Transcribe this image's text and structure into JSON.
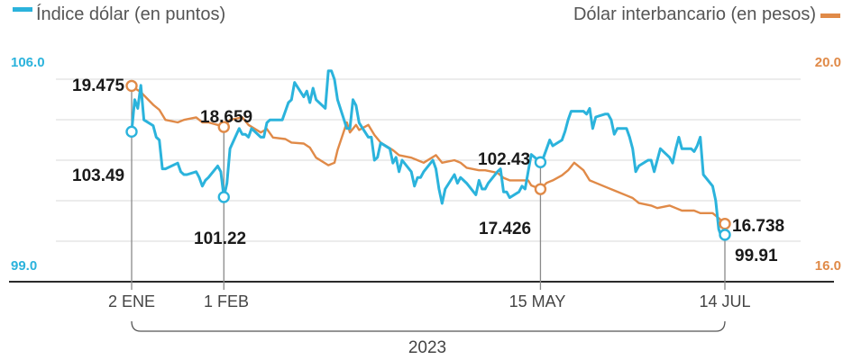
{
  "chart_data": {
    "type": "line",
    "legend": [
      {
        "label": "Índice dólar (en puntos)",
        "color": "#2bb3dc",
        "position": "top-left"
      },
      {
        "label": "Dólar interbancario (en pesos)",
        "color": "#e08a48",
        "position": "top-right"
      }
    ],
    "left_axis": {
      "min_label": "99.0",
      "max_label": "106.0",
      "range": [
        99.0,
        106.0
      ],
      "color": "#2bb3dc"
    },
    "right_axis": {
      "min_label": "16.0",
      "max_label": "20.0",
      "range": [
        16.0,
        20.0
      ],
      "color": "#e08a48"
    },
    "x_ticks": [
      "2 ENE",
      "1 FEB",
      "15 MAY",
      "14 JUL"
    ],
    "year_label": "2023",
    "grid": true,
    "series": [
      {
        "name": "Índice dólar (en puntos)",
        "axis": "left",
        "color": "#2bb3dc",
        "points": [
          [
            "2023-01-02",
            103.49
          ],
          [
            "2023-01-03",
            104.6
          ],
          [
            "2023-01-04",
            104.3
          ],
          [
            "2023-01-05",
            105.1
          ],
          [
            "2023-01-06",
            103.9
          ],
          [
            "2023-01-09",
            103.7
          ],
          [
            "2023-01-10",
            103.3
          ],
          [
            "2023-01-11",
            103.2
          ],
          [
            "2023-01-12",
            102.2
          ],
          [
            "2023-01-13",
            102.2
          ],
          [
            "2023-01-17",
            102.4
          ],
          [
            "2023-01-18",
            102.1
          ],
          [
            "2023-01-19",
            102.0
          ],
          [
            "2023-01-20",
            102.0
          ],
          [
            "2023-01-23",
            102.1
          ],
          [
            "2023-01-24",
            101.9
          ],
          [
            "2023-01-25",
            101.6
          ],
          [
            "2023-01-26",
            101.8
          ],
          [
            "2023-01-27",
            101.9
          ],
          [
            "2023-01-30",
            102.3
          ],
          [
            "2023-01-31",
            102.1
          ],
          [
            "2023-02-01",
            101.22
          ],
          [
            "2023-02-02",
            101.7
          ],
          [
            "2023-02-03",
            102.9
          ],
          [
            "2023-02-06",
            103.6
          ],
          [
            "2023-02-07",
            103.4
          ],
          [
            "2023-02-08",
            103.4
          ],
          [
            "2023-02-09",
            103.3
          ],
          [
            "2023-02-10",
            103.6
          ],
          [
            "2023-02-13",
            103.3
          ],
          [
            "2023-02-14",
            103.3
          ],
          [
            "2023-02-15",
            103.8
          ],
          [
            "2023-02-16",
            103.9
          ],
          [
            "2023-02-17",
            103.9
          ],
          [
            "2023-02-20",
            103.9
          ],
          [
            "2023-02-21",
            104.2
          ],
          [
            "2023-02-22",
            104.5
          ],
          [
            "2023-02-23",
            104.6
          ],
          [
            "2023-02-24",
            105.2
          ],
          [
            "2023-02-27",
            104.7
          ],
          [
            "2023-02-28",
            104.9
          ],
          [
            "2023-03-01",
            104.5
          ],
          [
            "2023-03-02",
            105.0
          ],
          [
            "2023-03-03",
            104.6
          ],
          [
            "2023-03-06",
            104.3
          ],
          [
            "2023-03-07",
            105.6
          ],
          [
            "2023-03-08",
            105.6
          ],
          [
            "2023-03-09",
            105.3
          ],
          [
            "2023-03-10",
            104.6
          ],
          [
            "2023-03-13",
            103.6
          ],
          [
            "2023-03-14",
            103.6
          ],
          [
            "2023-03-15",
            104.6
          ],
          [
            "2023-03-16",
            104.4
          ],
          [
            "2023-03-17",
            103.8
          ],
          [
            "2023-03-20",
            103.3
          ],
          [
            "2023-03-21",
            103.3
          ],
          [
            "2023-03-22",
            102.5
          ],
          [
            "2023-03-23",
            102.6
          ],
          [
            "2023-03-24",
            103.1
          ],
          [
            "2023-03-27",
            102.9
          ],
          [
            "2023-03-28",
            102.4
          ],
          [
            "2023-03-29",
            102.6
          ],
          [
            "2023-03-30",
            102.1
          ],
          [
            "2023-03-31",
            102.5
          ],
          [
            "2023-04-03",
            102.1
          ],
          [
            "2023-04-04",
            101.6
          ],
          [
            "2023-04-05",
            101.9
          ],
          [
            "2023-04-06",
            101.9
          ],
          [
            "2023-04-07",
            102.1
          ],
          [
            "2023-04-10",
            102.5
          ],
          [
            "2023-04-11",
            102.2
          ],
          [
            "2023-04-12",
            101.5
          ],
          [
            "2023-04-13",
            101.0
          ],
          [
            "2023-04-14",
            101.5
          ],
          [
            "2023-04-17",
            102.0
          ],
          [
            "2023-04-18",
            101.7
          ],
          [
            "2023-04-19",
            101.9
          ],
          [
            "2023-04-20",
            101.8
          ],
          [
            "2023-04-21",
            101.7
          ],
          [
            "2023-04-24",
            101.3
          ],
          [
            "2023-04-25",
            101.8
          ],
          [
            "2023-04-26",
            101.5
          ],
          [
            "2023-04-27",
            101.5
          ],
          [
            "2023-04-28",
            101.7
          ],
          [
            "2023-05-01",
            102.1
          ],
          [
            "2023-05-02",
            102.2
          ],
          [
            "2023-05-03",
            101.4
          ],
          [
            "2023-05-04",
            101.4
          ],
          [
            "2023-05-05",
            101.2
          ],
          [
            "2023-05-08",
            101.4
          ],
          [
            "2023-05-09",
            101.6
          ],
          [
            "2023-05-10",
            101.5
          ],
          [
            "2023-05-11",
            102.1
          ],
          [
            "2023-05-12",
            102.7
          ],
          [
            "2023-05-15",
            102.43
          ],
          [
            "2023-05-16",
            102.6
          ],
          [
            "2023-05-17",
            102.9
          ],
          [
            "2023-05-18",
            103.2
          ],
          [
            "2023-05-19",
            103.0
          ],
          [
            "2023-05-22",
            103.2
          ],
          [
            "2023-05-23",
            103.5
          ],
          [
            "2023-05-24",
            103.9
          ],
          [
            "2023-05-25",
            104.2
          ],
          [
            "2023-05-26",
            104.2
          ],
          [
            "2023-05-29",
            104.2
          ],
          [
            "2023-05-30",
            104.1
          ],
          [
            "2023-05-31",
            104.3
          ],
          [
            "2023-06-01",
            103.6
          ],
          [
            "2023-06-02",
            104.0
          ],
          [
            "2023-06-05",
            104.1
          ],
          [
            "2023-06-06",
            104.1
          ],
          [
            "2023-06-07",
            103.9
          ],
          [
            "2023-06-08",
            103.4
          ],
          [
            "2023-06-09",
            103.6
          ],
          [
            "2023-06-12",
            103.6
          ],
          [
            "2023-06-13",
            103.3
          ],
          [
            "2023-06-14",
            102.9
          ],
          [
            "2023-06-15",
            102.1
          ],
          [
            "2023-06-16",
            102.3
          ],
          [
            "2023-06-19",
            102.5
          ],
          [
            "2023-06-20",
            102.5
          ],
          [
            "2023-06-21",
            102.1
          ],
          [
            "2023-06-22",
            102.5
          ],
          [
            "2023-06-23",
            102.9
          ],
          [
            "2023-06-26",
            102.6
          ],
          [
            "2023-06-27",
            102.4
          ],
          [
            "2023-06-28",
            102.9
          ],
          [
            "2023-06-29",
            103.3
          ],
          [
            "2023-06-30",
            102.9
          ],
          [
            "2023-07-03",
            102.9
          ],
          [
            "2023-07-04",
            102.8
          ],
          [
            "2023-07-05",
            103.0
          ],
          [
            "2023-07-06",
            103.3
          ],
          [
            "2023-07-07",
            102.0
          ],
          [
            "2023-07-10",
            101.6
          ],
          [
            "2023-07-11",
            101.1
          ],
          [
            "2023-07-12",
            100.1
          ],
          [
            "2023-07-13",
            99.8
          ],
          [
            "2023-07-14",
            99.91
          ]
        ]
      },
      {
        "name": "Dólar interbancario (en pesos)",
        "axis": "right",
        "color": "#e08a48",
        "points": [
          [
            "2023-01-02",
            19.475
          ],
          [
            "2023-01-03",
            19.43
          ],
          [
            "2023-01-05",
            19.35
          ],
          [
            "2023-01-09",
            19.1
          ],
          [
            "2023-01-11",
            19.0
          ],
          [
            "2023-01-13",
            18.8
          ],
          [
            "2023-01-17",
            18.75
          ],
          [
            "2023-01-19",
            18.8
          ],
          [
            "2023-01-23",
            18.85
          ],
          [
            "2023-01-25",
            18.75
          ],
          [
            "2023-01-27",
            18.75
          ],
          [
            "2023-01-30",
            18.7
          ],
          [
            "2023-02-01",
            18.659
          ],
          [
            "2023-02-03",
            18.8
          ],
          [
            "2023-02-07",
            18.85
          ],
          [
            "2023-02-09",
            18.7
          ],
          [
            "2023-02-13",
            18.55
          ],
          [
            "2023-02-15",
            18.62
          ],
          [
            "2023-02-17",
            18.45
          ],
          [
            "2023-02-21",
            18.42
          ],
          [
            "2023-02-23",
            18.35
          ],
          [
            "2023-02-27",
            18.33
          ],
          [
            "2023-03-01",
            18.25
          ],
          [
            "2023-03-03",
            18.05
          ],
          [
            "2023-03-07",
            17.9
          ],
          [
            "2023-03-09",
            17.95
          ],
          [
            "2023-03-10",
            18.2
          ],
          [
            "2023-03-13",
            18.75
          ],
          [
            "2023-03-14",
            18.55
          ],
          [
            "2023-03-16",
            18.7
          ],
          [
            "2023-03-17",
            18.6
          ],
          [
            "2023-03-20",
            18.7
          ],
          [
            "2023-03-22",
            18.5
          ],
          [
            "2023-03-24",
            18.35
          ],
          [
            "2023-03-28",
            18.2
          ],
          [
            "2023-03-30",
            18.1
          ],
          [
            "2023-04-03",
            18.05
          ],
          [
            "2023-04-05",
            18.0
          ],
          [
            "2023-04-07",
            17.95
          ],
          [
            "2023-04-11",
            18.1
          ],
          [
            "2023-04-13",
            17.95
          ],
          [
            "2023-04-17",
            18.0
          ],
          [
            "2023-04-19",
            17.95
          ],
          [
            "2023-04-21",
            17.85
          ],
          [
            "2023-04-25",
            17.8
          ],
          [
            "2023-04-27",
            17.8
          ],
          [
            "2023-05-01",
            17.75
          ],
          [
            "2023-05-03",
            17.65
          ],
          [
            "2023-05-05",
            17.6
          ],
          [
            "2023-05-09",
            17.6
          ],
          [
            "2023-05-11",
            17.6
          ],
          [
            "2023-05-12",
            17.5
          ],
          [
            "2023-05-15",
            17.426
          ],
          [
            "2023-05-17",
            17.55
          ],
          [
            "2023-05-19",
            17.6
          ],
          [
            "2023-05-22",
            17.7
          ],
          [
            "2023-05-24",
            17.8
          ],
          [
            "2023-05-26",
            17.95
          ],
          [
            "2023-05-29",
            17.8
          ],
          [
            "2023-05-31",
            17.6
          ],
          [
            "2023-06-02",
            17.55
          ],
          [
            "2023-06-06",
            17.45
          ],
          [
            "2023-06-08",
            17.4
          ],
          [
            "2023-06-12",
            17.3
          ],
          [
            "2023-06-14",
            17.25
          ],
          [
            "2023-06-16",
            17.15
          ],
          [
            "2023-06-20",
            17.1
          ],
          [
            "2023-06-22",
            17.05
          ],
          [
            "2023-06-26",
            17.1
          ],
          [
            "2023-06-28",
            17.05
          ],
          [
            "2023-06-30",
            17.0
          ],
          [
            "2023-07-04",
            17.0
          ],
          [
            "2023-07-06",
            16.95
          ],
          [
            "2023-07-10",
            16.95
          ],
          [
            "2023-07-12",
            16.85
          ],
          [
            "2023-07-14",
            16.738
          ]
        ]
      }
    ],
    "annotations": [
      {
        "label": "19.475",
        "series": "Dólar interbancario (en pesos)",
        "date": "2023-01-02",
        "value": 19.475
      },
      {
        "label": "103.49",
        "series": "Índice dólar (en puntos)",
        "date": "2023-01-02",
        "value": 103.49
      },
      {
        "label": "18.659",
        "series": "Dólar interbancario (en pesos)",
        "date": "2023-02-01",
        "value": 18.659
      },
      {
        "label": "101.22",
        "series": "Índice dólar (en puntos)",
        "date": "2023-02-01",
        "value": 101.22
      },
      {
        "label": "102.43",
        "series": "Índice dólar (en puntos)",
        "date": "2023-05-15",
        "value": 102.43
      },
      {
        "label": "17.426",
        "series": "Dólar interbancario (en pesos)",
        "date": "2023-05-15",
        "value": 17.426
      },
      {
        "label": "16.738",
        "series": "Dólar interbancario (en pesos)",
        "date": "2023-07-14",
        "value": 16.738
      },
      {
        "label": "99.91",
        "series": "Índice dólar (en puntos)",
        "date": "2023-07-14",
        "value": 99.91
      }
    ]
  }
}
